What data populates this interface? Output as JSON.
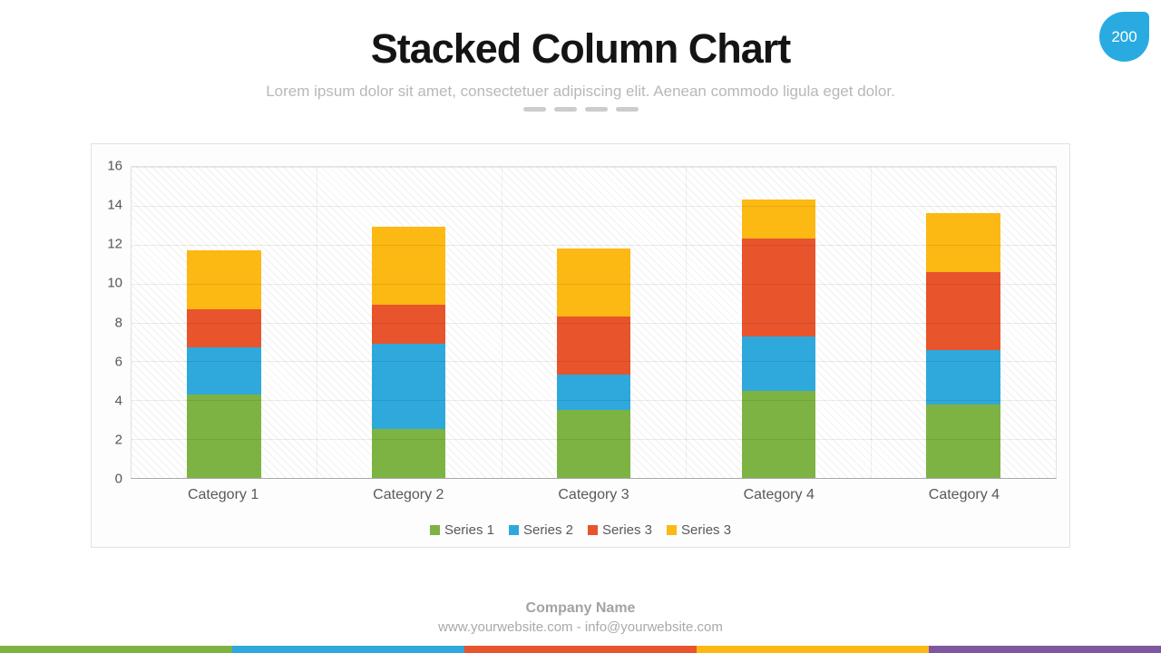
{
  "badge": {
    "value": "200",
    "color": "#29abe2"
  },
  "header": {
    "title": "Stacked Column Chart",
    "subtitle": "Lorem ipsum dolor sit amet, consectetuer adipiscing elit. Aenean commodo ligula eget dolor."
  },
  "chart_data": {
    "type": "bar",
    "stacked": true,
    "title": "Stacked Column Chart",
    "categories": [
      "Category 1",
      "Category 2",
      "Category 3",
      "Category 4",
      "Category 4"
    ],
    "series": [
      {
        "name": "Series 1",
        "color": "#7db343",
        "values": [
          4.3,
          2.5,
          3.5,
          4.5,
          3.8
        ]
      },
      {
        "name": "Series 2",
        "color": "#2fa8dc",
        "values": [
          2.4,
          4.4,
          1.8,
          2.8,
          2.8
        ]
      },
      {
        "name": "Series 3",
        "color": "#e8542c",
        "values": [
          2.0,
          2.0,
          3.0,
          5.0,
          4.0
        ]
      },
      {
        "name": "Series 3",
        "color": "#fcb813",
        "values": [
          3.0,
          4.0,
          3.5,
          2.0,
          3.0
        ]
      }
    ],
    "totals": [
      11.7,
      12.9,
      11.8,
      14.3,
      13.6
    ],
    "ylim": [
      0,
      16
    ],
    "ytick_step": 2,
    "yticks": [
      0,
      2,
      4,
      6,
      8,
      10,
      12,
      14,
      16
    ],
    "grid": true,
    "legend_position": "bottom"
  },
  "footer": {
    "company": "Company Name",
    "contact": "www.yourwebsite.com - info@yourwebsite.com"
  },
  "bottom_bar_colors": [
    "#7db343",
    "#2fa8dc",
    "#e8542c",
    "#fcb813",
    "#7e57a0"
  ]
}
